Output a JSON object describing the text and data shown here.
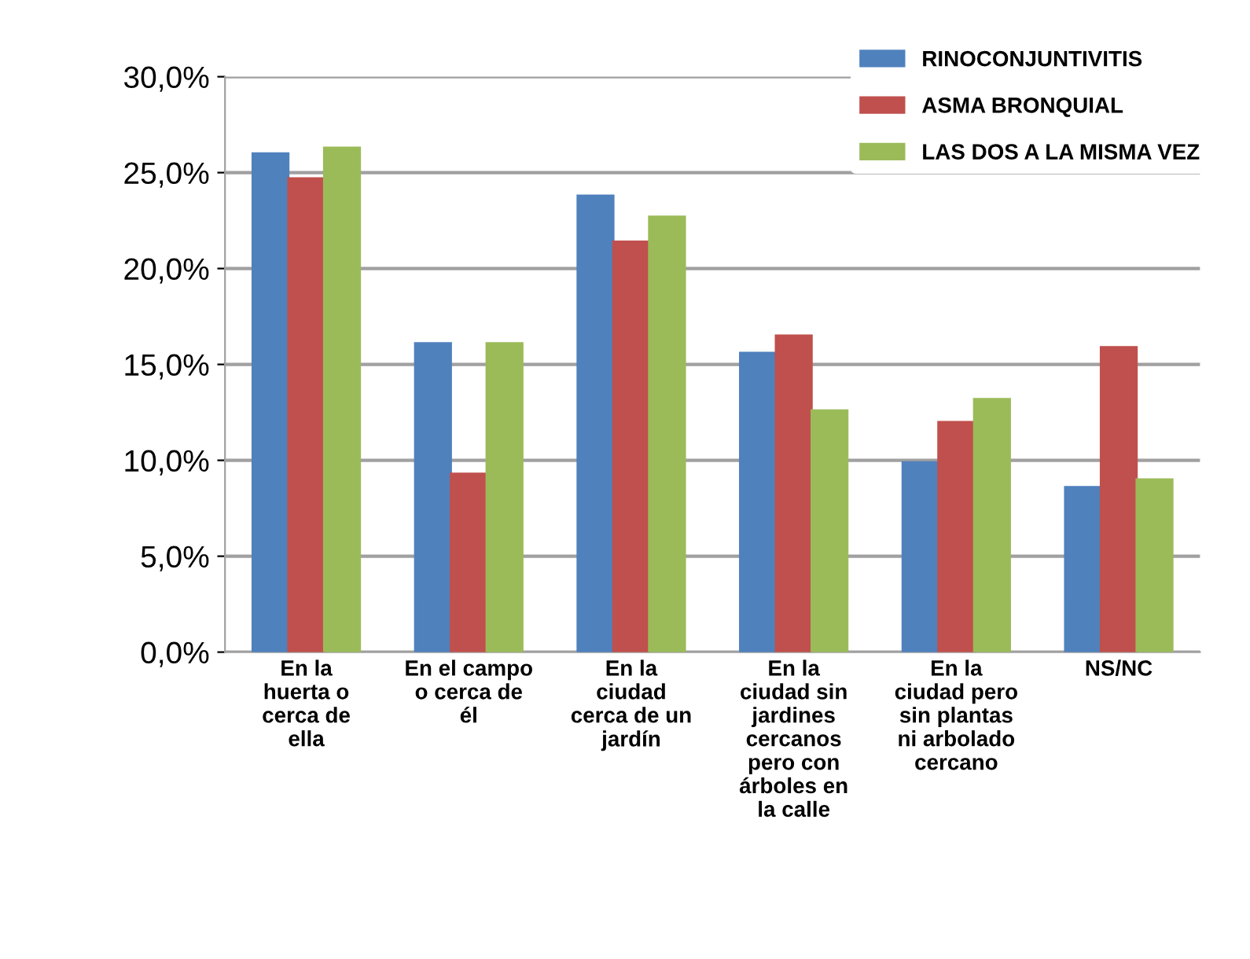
{
  "chart_data": {
    "type": "bar",
    "categories": [
      "En la huerta o cerca de ella",
      "En el campo o cerca de él",
      "En la ciudad cerca de un jardín",
      "En la ciudad sin jardines cercanos pero con árboles en la calle",
      "En la ciudad pero sin plantas ni arbolado cercano",
      "NS/NC"
    ],
    "series": [
      {
        "name": "RINOCONJUNTIVITIS",
        "color": "#4f81bd",
        "values": [
          26.0,
          16.1,
          23.8,
          15.6,
          9.9,
          8.6
        ]
      },
      {
        "name": "ASMA BRONQUIAL",
        "color": "#c0504d",
        "values": [
          24.7,
          9.3,
          21.4,
          16.5,
          12.0,
          15.9
        ]
      },
      {
        "name": "LAS DOS A LA MISMA VEZ",
        "color": "#9bbb59",
        "values": [
          26.3,
          16.1,
          22.7,
          12.6,
          13.2,
          9.0
        ]
      }
    ],
    "ylim": [
      0,
      30
    ],
    "yticks": [
      {
        "value": 0,
        "label": "0,0%"
      },
      {
        "value": 5,
        "label": "5,0%"
      },
      {
        "value": 10,
        "label": "10,0%"
      },
      {
        "value": 15,
        "label": "15,0%"
      },
      {
        "value": 20,
        "label": "20,0%"
      },
      {
        "value": 25,
        "label": "25,0%"
      },
      {
        "value": 30,
        "label": "30,0%"
      }
    ],
    "grid": "y",
    "legend": "top right"
  }
}
